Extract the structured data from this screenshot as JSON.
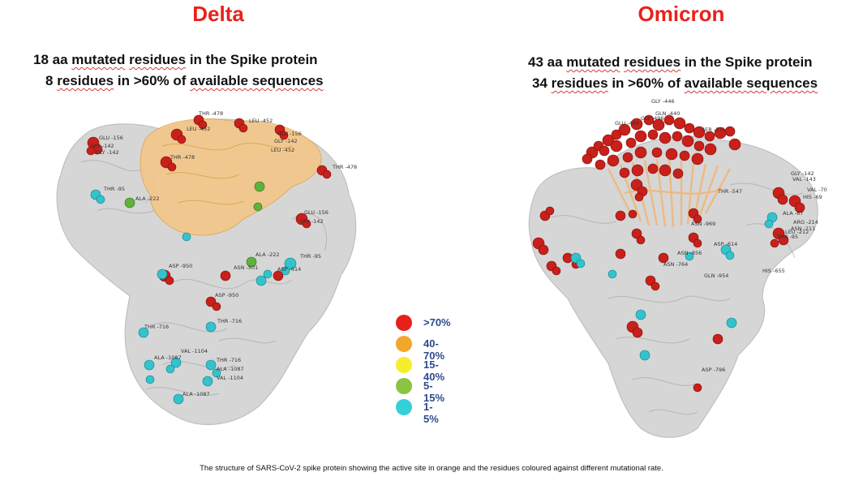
{
  "panels": {
    "delta": {
      "title": "Delta",
      "line1": {
        "count": "18 aa",
        "w1": "mutated",
        "w2": "residues",
        "rest": "in the Spike protein"
      },
      "line2": {
        "count": "8",
        "w1": "residues",
        "mid": "in >60% of",
        "w2": "available sequences"
      },
      "residue_labels": [
        "THR -478",
        "LEU -452",
        "GLU -156",
        "GLY -142",
        "LEU -452",
        "GLU -156",
        "GLY -142",
        "LEU -452",
        "THR -478",
        "THR -95",
        "ALA -222",
        "GLU -156",
        "GLY -142",
        "ALA -222",
        "THR -95",
        "ASP -950",
        "ASN -501",
        "ASP -614",
        "ASP -950",
        "THR -716",
        "THR -716",
        "ALA -1087",
        "VAL -1104",
        "THR -716",
        "ALA -1087",
        "VAL -1104",
        "ALA -1087",
        "THR -478",
        "GLY -142"
      ]
    },
    "omicron": {
      "title": "Omicron",
      "line1": {
        "count": "43 aa",
        "w1": "mutated",
        "w2": "residues",
        "rest": "in the Spike protein"
      },
      "line2": {
        "count": "34",
        "w1": "residues",
        "mid": "in >60% of",
        "w2": "available sequences"
      },
      "residue_labels": [
        "GLY -446",
        "GLN -440",
        "GLU -484",
        "GLY -496",
        "SER -371",
        "THR -547",
        "GLY -142",
        "VAL -143",
        "VAL -70",
        "HIS -69",
        "ARG -214",
        "ASN -211",
        "LEU -212",
        "ASP -614",
        "HIS -655",
        "ASN -856",
        "ASN -764",
        "GLN -954",
        "ASN -969",
        "ASP -796",
        "ALA -67",
        "THR -95"
      ]
    }
  },
  "legend": [
    {
      "label": ">70%",
      "color": "#e8201a"
    },
    {
      "label": "40-70%",
      "color": "#f3a72a"
    },
    {
      "label": "15-40%",
      "color": "#f6ee2c"
    },
    {
      "label": "5-15%",
      "color": "#8cc442"
    },
    {
      "label": "1-5%",
      "color": "#34d0d8"
    }
  ],
  "caption": "The structure of SARS-CoV-2 spike protein showing the active site in orange and the residues coloured against different mutational rate.",
  "colors": {
    "title": "#e8221b",
    "protein_grey": "#c7c7c7",
    "active_site_orange": "#f5c683",
    "high_mutation": "#c8201a",
    "low_mutation": "#34c3cc",
    "mid_mutation": "#5fb33a"
  }
}
